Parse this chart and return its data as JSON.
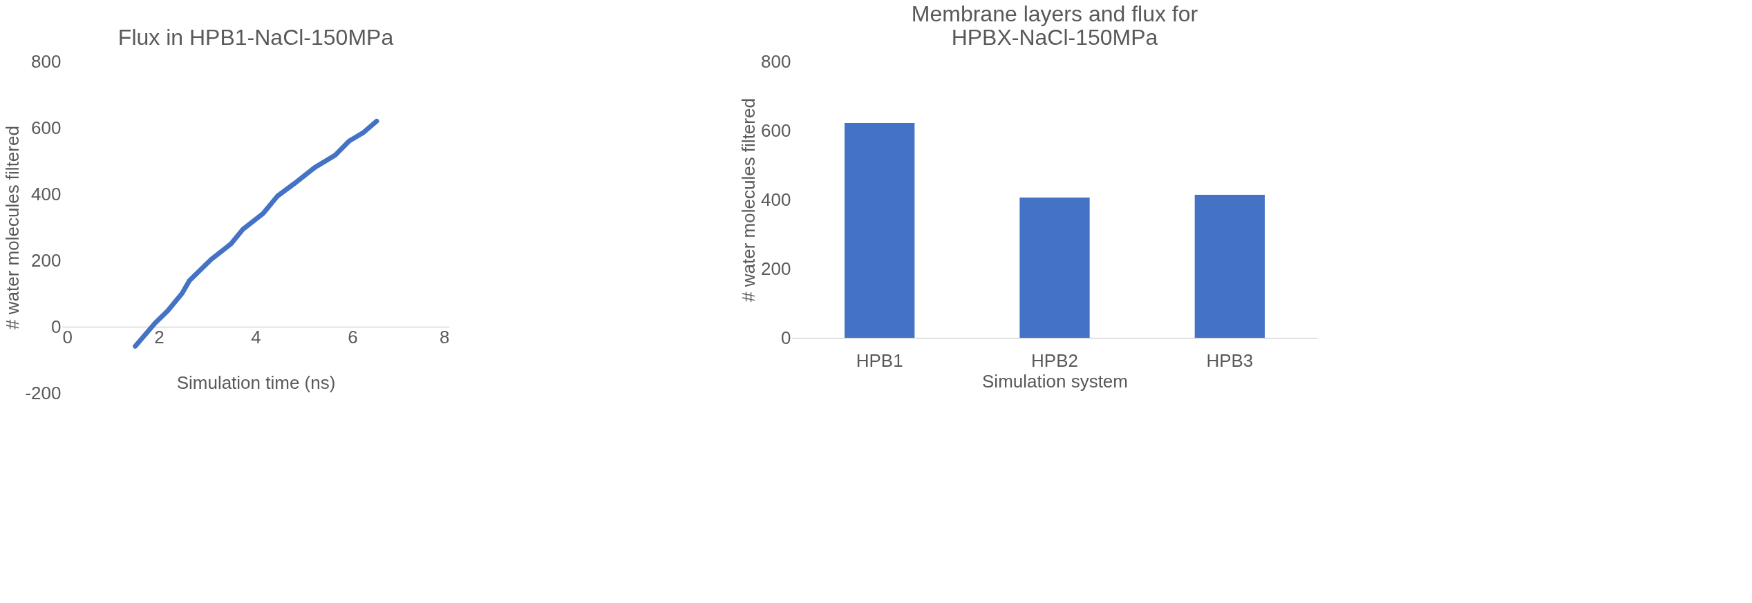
{
  "chart_data": [
    {
      "type": "line",
      "title": "Flux in HPB1-NaCl-150MPa",
      "xlabel": "Simulation time (ns)",
      "ylabel": "# water molecules filtered",
      "x": [
        1.51,
        1.92,
        2.18,
        2.48,
        2.63,
        3.08,
        3.49,
        3.73,
        4.15,
        4.45,
        4.8,
        5.22,
        5.64,
        5.93,
        6.23,
        6.5
      ],
      "series": [
        {
          "color": "#4472c4",
          "values": [
            -59,
            11,
            48,
            101,
            139,
            203,
            250,
            293,
            341,
            394,
            432,
            480,
            517,
            560,
            586,
            620
          ]
        }
      ],
      "xlim": [
        0,
        8
      ],
      "xticks": [
        0,
        2,
        4,
        6,
        8
      ],
      "ylim": [
        -200,
        800
      ],
      "yticks": [
        -200,
        0,
        200,
        400,
        600,
        800
      ],
      "grid": false,
      "marker": "none",
      "line_style": "solid"
    },
    {
      "type": "bar",
      "title": "Membrane layers and flux for HPBX-NaCl-150MPa",
      "xlabel": "Simulation system",
      "ylabel": "# water molecules filtered",
      "categories": [
        "HPB1",
        "HPB2",
        "HPB3"
      ],
      "series": [
        {
          "color": "#4472c4",
          "values": [
            622,
            406,
            414
          ]
        }
      ],
      "ylim": [
        0,
        800
      ],
      "yticks": [
        0,
        200,
        400,
        600,
        800
      ],
      "grid": false
    }
  ]
}
